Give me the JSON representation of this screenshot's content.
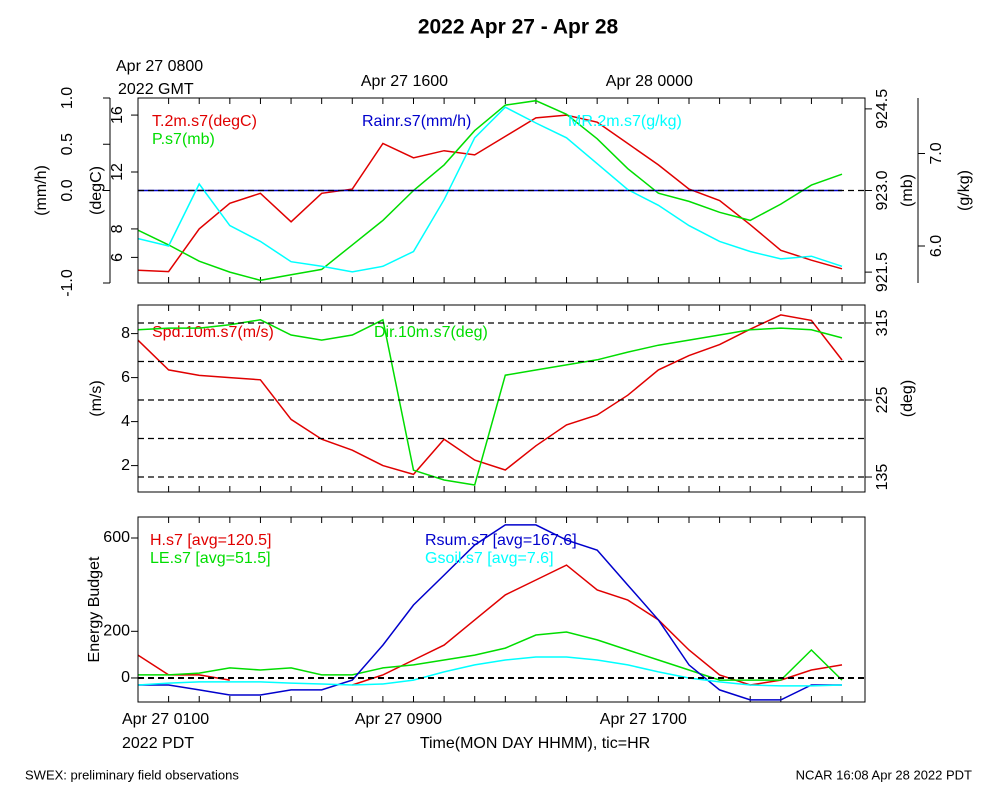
{
  "title": "2022 Apr 27 - Apr 28",
  "footer": {
    "left": "SWEX: preliminary field observations",
    "right": "NCAR 16:08 Apr 28 2022 PDT"
  },
  "chart_data": [
    {
      "type": "line",
      "x": [
        0,
        1,
        2,
        3,
        4,
        5,
        6,
        7,
        8,
        9,
        10,
        11,
        12,
        13,
        14,
        15,
        16,
        17,
        18,
        19,
        20,
        21,
        22,
        23
      ],
      "xlim": [
        0,
        23.75
      ],
      "x_minor_ticks": [
        0,
        1,
        2,
        3,
        4,
        5,
        6,
        7,
        8,
        9,
        10,
        11,
        12,
        13,
        14,
        15,
        16,
        17,
        18,
        19,
        20,
        21,
        22,
        23
      ],
      "xticks_top": [
        {
          "value": 0,
          "label": "Apr 27 0800"
        },
        {
          "value": 8,
          "label": "Apr 27 1600"
        },
        {
          "value": 16,
          "label": "Apr 28 0000"
        }
      ],
      "x_note_top": "2022 GMT",
      "axes": [
        {
          "label": "(degC)",
          "lim": [
            4.2,
            17.2
          ],
          "ticks": [
            6,
            8,
            12,
            16
          ]
        },
        {
          "label": "(mm/h)",
          "lim": [
            -1,
            1
          ],
          "ticks": [
            {
              "value": -1,
              "label": "-1.0"
            },
            {
              "value": 0,
              "label": "0.0"
            },
            {
              "value": 0.5,
              "label": "0.5"
            },
            {
              "value": 1,
              "label": "1.0"
            }
          ]
        },
        {
          "label": "(mb)",
          "lim": [
            921.3,
            924.7
          ],
          "ticks": [
            {
              "value": 921.5,
              "label": "921.5"
            },
            {
              "value": 923,
              "label": "923.0"
            },
            {
              "value": 924.5,
              "label": "924.5"
            }
          ]
        },
        {
          "label": "(g/kg)",
          "lim": [
            5.6,
            7.6
          ],
          "ticks": [
            {
              "value": 6,
              "label": "6.0"
            },
            {
              "value": 7,
              "label": "7.0"
            }
          ]
        }
      ],
      "hlines": [
        {
          "axis": 1,
          "values": [
            0
          ]
        }
      ],
      "series": [
        {
          "name": "T.2m.s7(degC)",
          "color": "#e00000",
          "axis": 0,
          "values": [
            5.1,
            5.0,
            8,
            9.8,
            10.5,
            8.5,
            10.5,
            10.8,
            14,
            13,
            13.5,
            13.2,
            14.5,
            15.8,
            16,
            15.5,
            14,
            12.5,
            10.8,
            10,
            8.3,
            6.5,
            5.8,
            5.2
          ]
        },
        {
          "name": "P.s7(mb)",
          "color": "#00dd00",
          "axis": 2,
          "values": [
            922.27,
            922.0,
            921.7,
            921.5,
            921.35,
            921.45,
            921.55,
            922.0,
            922.45,
            923.0,
            923.47,
            924.1,
            924.57,
            924.65,
            924.4,
            923.95,
            923.4,
            922.95,
            922.8,
            922.6,
            922.45,
            922.75,
            923.1,
            923.3
          ]
        },
        {
          "name": "Rainr.s7(mm/h)",
          "color": "#0000cc",
          "axis": 1,
          "values": [
            0,
            0,
            0,
            0,
            0,
            0,
            0,
            0,
            0,
            0,
            0,
            0,
            0,
            0,
            0,
            0,
            0,
            0,
            0,
            0,
            0,
            0,
            0,
            0
          ]
        },
        {
          "name": "MR.2m.s7(g/kg)",
          "color": "#00ffff",
          "axis": 3,
          "values": [
            6.08,
            6.0,
            6.67,
            6.22,
            6.05,
            5.83,
            5.78,
            5.72,
            5.78,
            5.94,
            6.5,
            7.17,
            7.5,
            7.33,
            7.17,
            6.89,
            6.61,
            6.44,
            6.22,
            6.05,
            5.94,
            5.86,
            5.89,
            5.78
          ]
        }
      ]
    },
    {
      "type": "line",
      "x": [
        0,
        1,
        2,
        3,
        4,
        5,
        6,
        7,
        8,
        9,
        10,
        11,
        12,
        13,
        14,
        15,
        16,
        17,
        18,
        19,
        20,
        21,
        22,
        23
      ],
      "xlim": [
        0,
        23.75
      ],
      "x_minor_ticks": [
        0,
        1,
        2,
        3,
        4,
        5,
        6,
        7,
        8,
        9,
        10,
        11,
        12,
        13,
        14,
        15,
        16,
        17,
        18,
        19,
        20,
        21,
        22,
        23
      ],
      "axes": [
        {
          "label": "(m/s)",
          "lim": [
            0.8,
            9.3
          ],
          "ticks": [
            2,
            4,
            6,
            8
          ]
        },
        {
          "label": "(deg)",
          "lim": [
            117.5,
            336
          ],
          "ticks": [
            135,
            225,
            315
          ]
        }
      ],
      "hlines": [
        {
          "axis": 1,
          "values": [
            135,
            180,
            225,
            270,
            315
          ]
        }
      ],
      "series": [
        {
          "name": "Spd.10m.s7(m/s)",
          "color": "#e00000",
          "axis": 0,
          "values": [
            7.7,
            6.35,
            6.1,
            6.0,
            5.9,
            4.1,
            3.2,
            2.7,
            2.0,
            1.6,
            3.2,
            2.25,
            1.8,
            2.9,
            3.85,
            4.3,
            5.2,
            6.35,
            7.0,
            7.5,
            8.2,
            8.85,
            8.6,
            6.8
          ]
        },
        {
          "name": "Dir.10m.s7(deg)",
          "color": "#00dd00",
          "axis": 1,
          "values": [
            307,
            309,
            309,
            313,
            318.7,
            301,
            295,
            301,
            318.7,
            143,
            131.5,
            125.7,
            254,
            260,
            266,
            272,
            281,
            289,
            295,
            301,
            307,
            309,
            307,
            297.6
          ]
        }
      ]
    },
    {
      "type": "line",
      "x": [
        0,
        1,
        2,
        3,
        4,
        5,
        6,
        7,
        8,
        9,
        10,
        11,
        12,
        13,
        14,
        15,
        16,
        17,
        18,
        19,
        20,
        21,
        22,
        23
      ],
      "xlim": [
        0,
        23.75
      ],
      "x_minor_ticks": [
        0,
        1,
        2,
        3,
        4,
        5,
        6,
        7,
        8,
        9,
        10,
        11,
        12,
        13,
        14,
        15,
        16,
        17,
        18,
        19,
        20,
        21,
        22,
        23
      ],
      "xticks": [
        {
          "value": 0,
          "label": "Apr 27 0100"
        },
        {
          "value": 8,
          "label": "Apr 27 0900"
        },
        {
          "value": 16,
          "label": "Apr 27 1700"
        }
      ],
      "x_note": "2022 PDT",
      "xlabel": "Time(MON DAY HHMM), tic=HR",
      "axes": [
        {
          "label": "Energy Budget",
          "lim": [
            -103,
            690
          ],
          "ticks": [
            0,
            200,
            600
          ]
        }
      ],
      "hlines": [
        {
          "axis": 0,
          "values": [
            0
          ]
        }
      ],
      "series": [
        {
          "name": "H.s7 [avg=120.5]",
          "color": "#e00000",
          "axis": 0,
          "values": [
            98,
            13,
            13,
            -9,
            null,
            null,
            null,
            -30,
            13,
            77,
            141,
            249,
            356,
            420,
            484,
            377,
            334,
            249,
            120,
            13,
            -30,
            -9,
            34,
            56
          ]
        },
        {
          "name": "LE.s7 [avg=51.5]",
          "color": "#00dd00",
          "axis": 0,
          "values": [
            13,
            13,
            21,
            43,
            34,
            43,
            13,
            13,
            43,
            56,
            77,
            98,
            128,
            184,
            197,
            163,
            120,
            77,
            34,
            -9,
            -9,
            -9,
            120,
            -9
          ]
        },
        {
          "name": "Rsum.s7 [avg=167.6]",
          "color": "#0000cc",
          "axis": 0,
          "values": [
            -30,
            -30,
            -51,
            -73,
            -73,
            -51,
            -51,
            -9,
            141,
            313,
            441,
            570,
            656,
            656,
            591,
            548,
            398,
            249,
            56,
            -51,
            -94,
            -94,
            -30,
            -30
          ]
        },
        {
          "name": "Gsoil.s7 [avg=7.6]",
          "color": "#00ffff",
          "axis": 0,
          "values": [
            -30,
            -22,
            -17,
            -17,
            -17,
            -22,
            -26,
            -30,
            -26,
            -9,
            26,
            56,
            77,
            90,
            90,
            77,
            56,
            26,
            0,
            -17,
            -30,
            -34,
            -34,
            -30
          ]
        }
      ]
    }
  ]
}
